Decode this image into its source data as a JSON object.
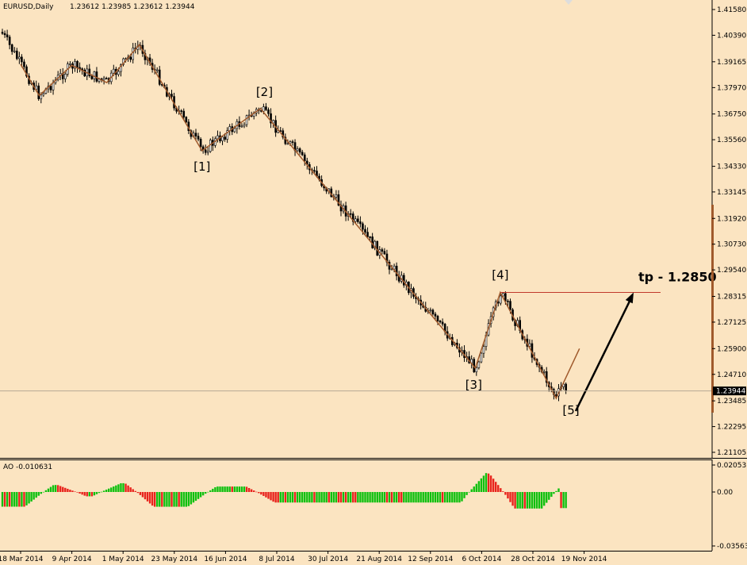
{
  "header": {
    "symbol": "EURUSD,Daily",
    "ohlc": "1.23612 1.23985 1.23612 1.23944"
  },
  "indicator": {
    "label": "AO -0.010631",
    "ticks": [
      "0.020531",
      "0.00",
      "-0.035636"
    ]
  },
  "price_axis": {
    "ticks": [
      "1.41580",
      "1.40390",
      "1.39165",
      "1.37970",
      "1.36750",
      "1.35560",
      "1.34330",
      "1.33145",
      "1.31920",
      "1.30730",
      "1.29540",
      "1.28315",
      "1.27125",
      "1.25900",
      "1.24710",
      "1.23485",
      "1.22295",
      "1.21105"
    ],
    "current_price": "1.23944"
  },
  "date_axis": [
    "18 Mar 2014",
    "9 Apr 2014",
    "1 May 2014",
    "23 May 2014",
    "16 Jun 2014",
    "8 Jul 2014",
    "30 Jul 2014",
    "21 Aug 2014",
    "12 Sep 2014",
    "6 Oct 2014",
    "28 Oct 2014",
    "19 Nov 2014"
  ],
  "wave_labels": [
    "[1]",
    "[2]",
    "[3]",
    "[4]",
    "[5]"
  ],
  "target_label": "tp - 1.2850",
  "colors": {
    "background": "#fbe4c1",
    "candle": "#000000",
    "wave_line": "#a05a2c",
    "target_line": "#c0392b",
    "ao_up": "#0fc00f",
    "ao_down": "#e8231c"
  },
  "chart_data": {
    "type": "line",
    "title": "EURUSD,Daily",
    "wave_points": [
      {
        "date": "18 Mar 2014",
        "price": 1.3905
      },
      {
        "date": "26 Mar 2014",
        "price": 1.376
      },
      {
        "date": "9 Apr 2014",
        "price": 1.39
      },
      {
        "date": "24 Apr 2014",
        "price": 1.382
      },
      {
        "date": "8 May 2014",
        "price": 1.3995
      },
      {
        "date": "5 Jun 2014",
        "price": 1.3505,
        "label": "[1]"
      },
      {
        "date": "1 Jul 2014",
        "price": 1.37,
        "label": "[2]"
      },
      {
        "date": "3 Oct 2014",
        "price": 1.25,
        "label": "[3]"
      },
      {
        "date": "14 Oct 2014",
        "price": 1.285,
        "label": "[4]"
      },
      {
        "date": "7 Nov 2014",
        "price": 1.236
      },
      {
        "date": "17 Nov 2014",
        "price": 1.259
      }
    ],
    "target": {
      "price": 1.285,
      "label": "tp - 1.2850"
    },
    "wave5_label_price": 1.233,
    "last_close": 1.23944,
    "ylim": [
      1.211,
      1.4158
    ],
    "ao_range": [
      -0.035636,
      0.020531
    ],
    "ao_last": -0.010631
  }
}
